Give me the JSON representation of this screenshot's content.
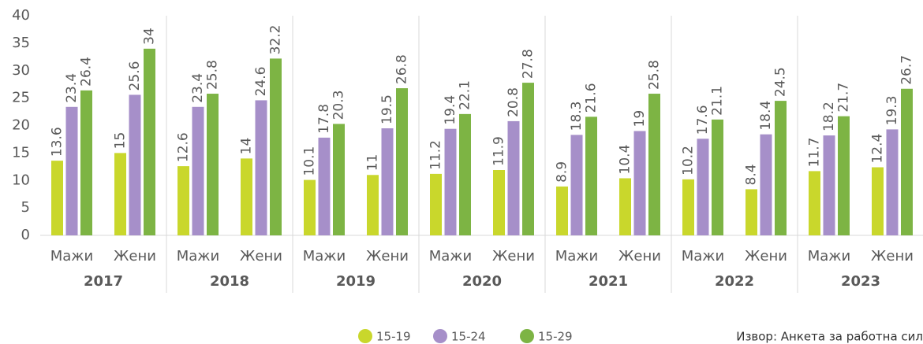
{
  "chart_data": {
    "type": "bar",
    "groups": [
      "2017",
      "2018",
      "2019",
      "2020",
      "2021",
      "2022",
      "2023"
    ],
    "categories": [
      "Мажи",
      "Жени",
      "Мажи",
      "Жени",
      "Мажи",
      "Жени",
      "Мажи",
      "Жени",
      "Мажи",
      "Жени",
      "Мажи",
      "Жени",
      "Мажи",
      "Жени"
    ],
    "series": [
      {
        "name": "15-19",
        "color": "#c9d72c",
        "values": [
          13.6,
          15,
          12.6,
          14,
          10.1,
          11,
          11.2,
          11.9,
          8.9,
          10.4,
          10.2,
          8.4,
          11.7,
          12.4
        ]
      },
      {
        "name": "15-24",
        "color": "#a68fc9",
        "values": [
          23.4,
          25.6,
          23.4,
          24.6,
          17.8,
          19.5,
          19.4,
          20.8,
          18.3,
          19,
          17.6,
          18.4,
          18.2,
          19.3
        ]
      },
      {
        "name": "15-29",
        "color": "#7db444",
        "values": [
          26.4,
          34,
          25.8,
          32.2,
          20.3,
          26.8,
          22.1,
          27.8,
          21.6,
          25.8,
          21.1,
          24.5,
          21.7,
          26.7
        ]
      }
    ],
    "ylim": [
      0,
      40
    ],
    "yticks": [
      0,
      5,
      10,
      15,
      20,
      25,
      30,
      35,
      40
    ],
    "source": "Извор: Анкета за работна сил"
  }
}
